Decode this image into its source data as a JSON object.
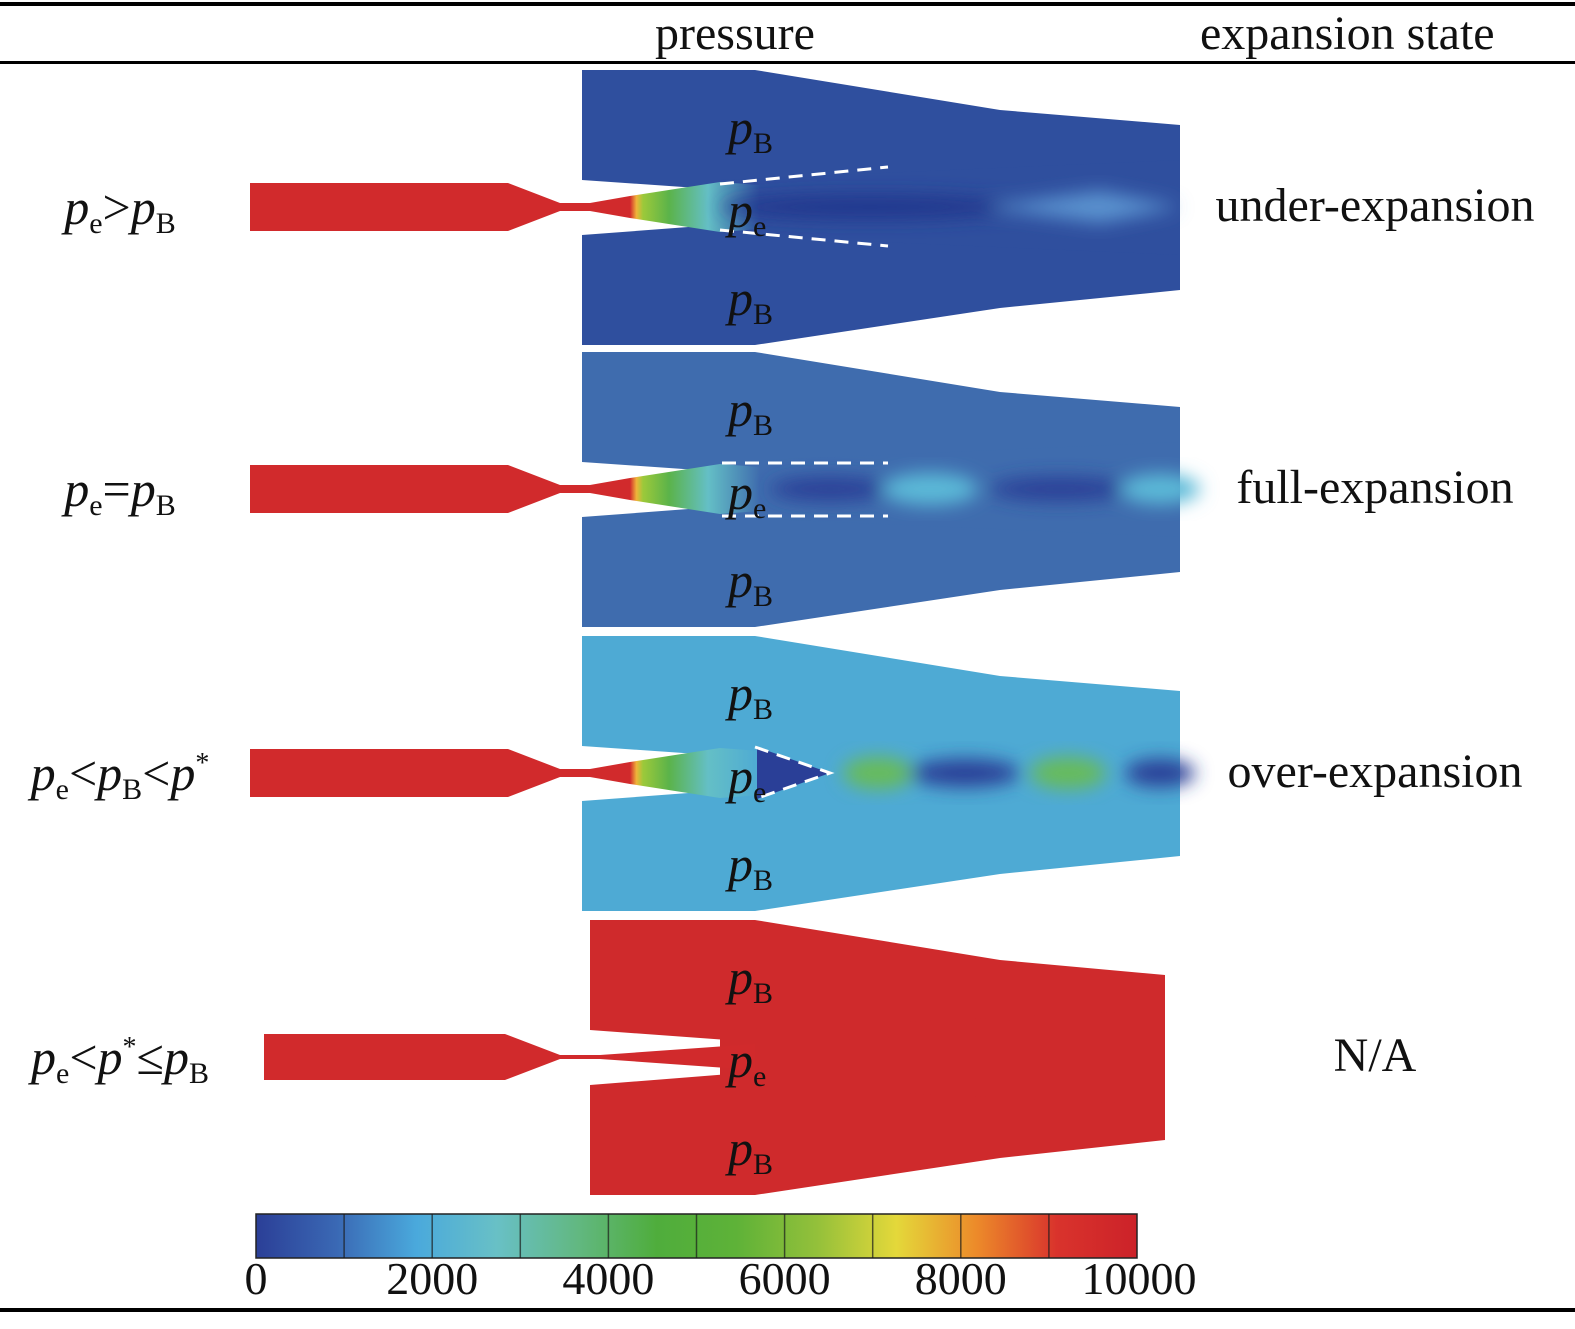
{
  "header": {
    "pressure": "pressure",
    "expansion_state": "expansion state"
  },
  "rows": [
    {
      "condition": [
        {
          "t": "p"
        },
        {
          "s": "e"
        },
        {
          "o": ">"
        },
        {
          "t": "p"
        },
        {
          "s": "B"
        }
      ],
      "state": "under-expansion",
      "field_color": "#2f4f9e",
      "jet": "under"
    },
    {
      "condition": [
        {
          "t": "p"
        },
        {
          "s": "e"
        },
        {
          "o": "="
        },
        {
          "t": "p"
        },
        {
          "s": "B"
        }
      ],
      "state": "full-expansion",
      "field_color": "#3f6cae",
      "jet": "full"
    },
    {
      "condition": [
        {
          "t": "p"
        },
        {
          "s": "e"
        },
        {
          "o": "<"
        },
        {
          "t": "p"
        },
        {
          "s": "B"
        },
        {
          "o": "<"
        },
        {
          "t": "p"
        },
        {
          "u": "*"
        }
      ],
      "state": "over-expansion",
      "field_color": "#4eaad4",
      "jet": "over"
    },
    {
      "condition": [
        {
          "t": "p"
        },
        {
          "s": "e"
        },
        {
          "o": "<"
        },
        {
          "t": "p"
        },
        {
          "u": "*"
        },
        {
          "o": "≤"
        },
        {
          "t": "p"
        },
        {
          "s": "B"
        }
      ],
      "state": "N/A",
      "field_color": "#cf2a2c",
      "jet": "none"
    }
  ],
  "field_labels": {
    "p": "p",
    "sub_B": "B",
    "sub_e": "e"
  },
  "colorbar": {
    "ticks": [
      "0",
      "2000",
      "4000",
      "6000",
      "8000",
      "10000"
    ],
    "min": 0,
    "max": 10000,
    "colors": [
      "#2b3f97",
      "#3a68b4",
      "#4aa9dc",
      "#68c0c6",
      "#62b882",
      "#4fad3c",
      "#5eb238",
      "#93c03a",
      "#e4d83a",
      "#ec8a2a",
      "#d9332c",
      "#cc2229"
    ]
  },
  "colors": {
    "nozzle": "#d12a2c",
    "dashed": "#ffffff"
  }
}
